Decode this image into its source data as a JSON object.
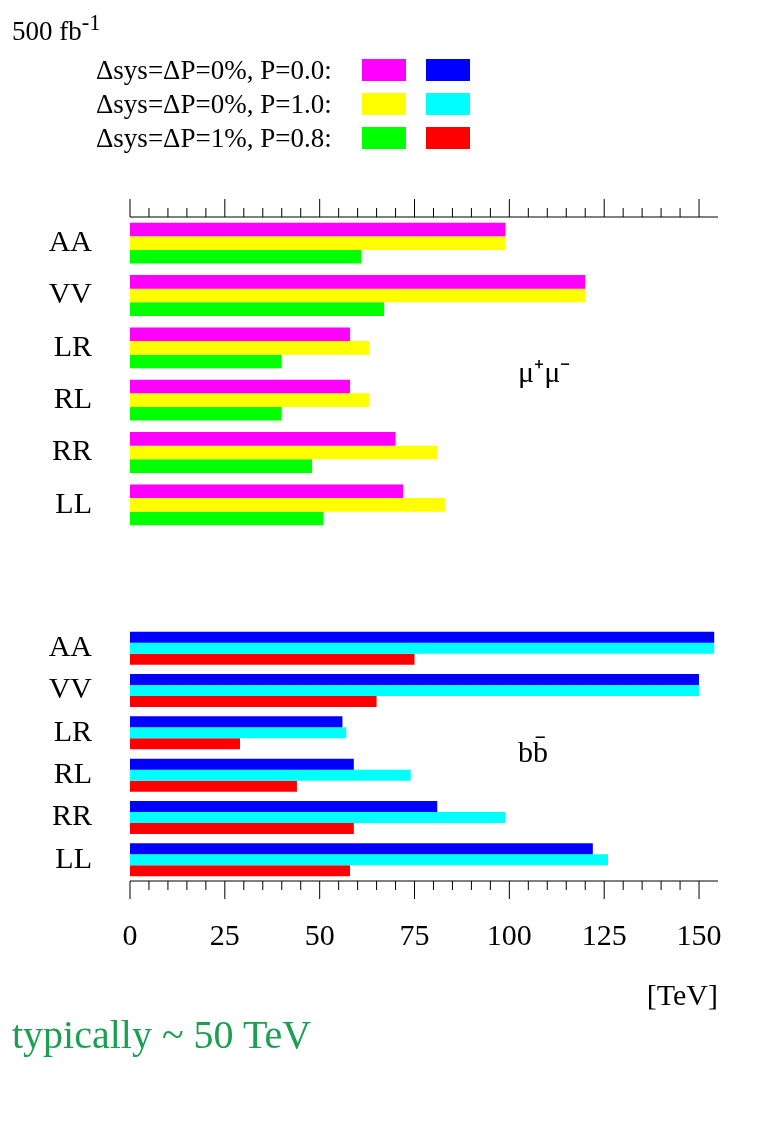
{
  "chart_data": [
    {
      "type": "bar",
      "orientation": "horizontal",
      "title": "500 fb$^{-1}$",
      "categories": [
        "AA",
        "VV",
        "LR",
        "RL",
        "RR",
        "LL"
      ],
      "legend": "top",
      "tick_labels": "y",
      "grid": false,
      "xlim": [
        0,
        155
      ],
      "xticks": [
        0,
        {
          "value": 5,
          "label": null
        },
        {
          "value": 10,
          "label": null
        },
        {
          "value": 15,
          "label": null
        },
        {
          "value": 20,
          "label": null
        },
        25,
        {
          "value": 30,
          "label": null
        },
        {
          "value": 35,
          "label": null
        },
        {
          "value": 40,
          "label": null
        },
        {
          "value": 45,
          "label": null
        },
        50,
        {
          "value": 55,
          "label": null
        },
        {
          "value": 60,
          "label": null
        },
        {
          "value": 65,
          "label": null
        },
        {
          "value": 70,
          "label": null
        },
        75,
        {
          "value": 80,
          "label": null
        },
        {
          "value": 85,
          "label": null
        },
        {
          "value": 90,
          "label": null
        },
        {
          "value": 95,
          "label": null
        },
        100,
        {
          "value": 105,
          "label": null
        },
        {
          "value": 110,
          "label": null
        },
        {
          "value": 115,
          "label": null
        },
        {
          "value": 120,
          "label": null
        },
        125,
        {
          "value": 130,
          "label": null
        },
        {
          "value": 135,
          "label": null
        },
        {
          "value": 140,
          "label": null
        },
        {
          "value": 145,
          "label": null
        },
        150
      ],
      "annotations": [
        "μ⁺μ⁻"
      ],
      "series": [
        {
          "name": "Δsys=ΔP=0%, P=0.0:",
          "color": "#ff00ff",
          "values": [
            99,
            120,
            58,
            58,
            70,
            72
          ]
        },
        {
          "name": "Δsys=ΔP=0%, P=1.0:",
          "color": "#ffff00",
          "values": [
            99,
            120,
            63,
            63,
            81,
            83
          ]
        },
        {
          "name": "Δsys=ΔP=1%, P=0.8:",
          "color": "#00ff00",
          "values": [
            61,
            67,
            40,
            40,
            48,
            51
          ]
        }
      ]
    },
    {
      "type": "bar",
      "orientation": "horizontal",
      "categories": [
        "AA",
        "VV",
        "LR",
        "RL",
        "RR",
        "LL"
      ],
      "xlabel": "[TeV]",
      "grid": false,
      "xlim": [
        0,
        155
      ],
      "xticks": [
        0,
        {
          "value": 5,
          "label": null
        },
        {
          "value": 10,
          "label": null
        },
        {
          "value": 15,
          "label": null
        },
        {
          "value": 20,
          "label": null
        },
        25,
        {
          "value": 30,
          "label": null
        },
        {
          "value": 35,
          "label": null
        },
        {
          "value": 40,
          "label": null
        },
        {
          "value": 45,
          "label": null
        },
        50,
        {
          "value": 55,
          "label": null
        },
        {
          "value": 60,
          "label": null
        },
        {
          "value": 65,
          "label": null
        },
        {
          "value": 70,
          "label": null
        },
        75,
        {
          "value": 80,
          "label": null
        },
        {
          "value": 85,
          "label": null
        },
        {
          "value": 90,
          "label": null
        },
        {
          "value": 95,
          "label": null
        },
        100,
        {
          "value": 105,
          "label": null
        },
        {
          "value": 110,
          "label": null
        },
        {
          "value": 115,
          "label": null
        },
        {
          "value": 120,
          "label": null
        },
        125,
        {
          "value": 130,
          "label": null
        },
        {
          "value": 135,
          "label": null
        },
        {
          "value": 140,
          "label": null
        },
        {
          "value": 145,
          "label": null
        },
        150
      ],
      "annotations": [
        "bb̄",
        "typically ~ 50 TeV"
      ],
      "series": [
        {
          "color": "#0000ff",
          "values": [
            154,
            150,
            56,
            59,
            81,
            122
          ]
        },
        {
          "color": "#00ffff",
          "values": [
            154,
            150,
            57,
            74,
            99,
            126
          ]
        },
        {
          "color": "#ff0000",
          "values": [
            75,
            65,
            29,
            44,
            59,
            58
          ]
        }
      ]
    }
  ]
}
